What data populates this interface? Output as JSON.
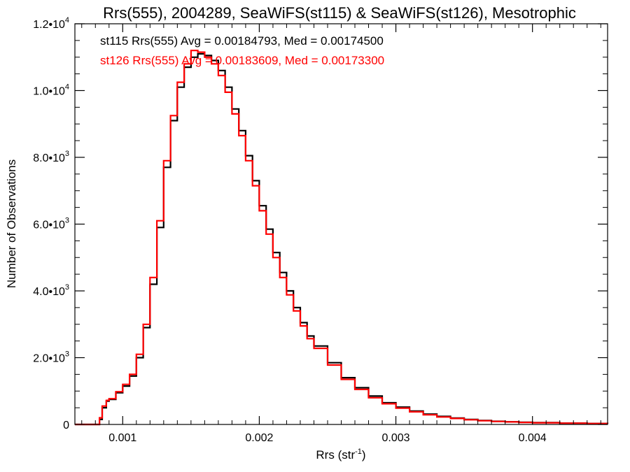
{
  "chart_data": {
    "type": "line",
    "title": "Rrs(555), 2004289, SeaWiFS(st115) & SeaWiFS(st126), Mesotrophic",
    "xlabel": "Rrs (str",
    "xlabel_sup": "-1",
    "xlabel_close": ")",
    "ylabel": "Number of Observations",
    "xlim": [
      0.00065,
      0.00455
    ],
    "ylim": [
      0,
      12000
    ],
    "x_ticks": [
      0.001,
      0.002,
      0.003,
      0.004
    ],
    "x_tick_labels": [
      "0.001",
      "0.002",
      "0.003",
      "0.004"
    ],
    "y_ticks": [
      0,
      2000,
      4000,
      6000,
      8000,
      10000,
      12000
    ],
    "y_tick_labels": [
      {
        "base": "0",
        "exp": ""
      },
      {
        "base": "2.0•10",
        "exp": "3"
      },
      {
        "base": "4.0•10",
        "exp": "3"
      },
      {
        "base": "6.0•10",
        "exp": "3"
      },
      {
        "base": "8.0•10",
        "exp": "3"
      },
      {
        "base": "1.0•10",
        "exp": "4"
      },
      {
        "base": "1.2•10",
        "exp": "4"
      }
    ],
    "annotations": [
      {
        "text": "st115 Rrs(555) Avg = 0.00184793, Med = 0.00174500",
        "color": "#000000"
      },
      {
        "text": "st126 Rrs(555) Avg = 0.00183609, Med = 0.00173300",
        "color": "#ff0000"
      }
    ],
    "series": [
      {
        "color": "#000000",
        "x": [
          0.0008,
          0.00083,
          0.00085,
          0.00088,
          0.0009,
          0.00095,
          0.001,
          0.00105,
          0.0011,
          0.00115,
          0.0012,
          0.00125,
          0.0013,
          0.00135,
          0.0014,
          0.00145,
          0.0015,
          0.00155,
          0.0016,
          0.00165,
          0.0017,
          0.00175,
          0.0018,
          0.00185,
          0.0019,
          0.00195,
          0.002,
          0.00205,
          0.0021,
          0.00215,
          0.0022,
          0.00225,
          0.0023,
          0.00235,
          0.0024,
          0.0025,
          0.0026,
          0.0027,
          0.0028,
          0.0029,
          0.003,
          0.0031,
          0.0032,
          0.0033,
          0.0034,
          0.0035,
          0.0036,
          0.0037,
          0.0038,
          0.0039,
          0.004,
          0.0042,
          0.0044,
          0.00455
        ],
        "values": [
          0,
          150,
          500,
          700,
          750,
          950,
          1150,
          1450,
          2000,
          2900,
          4200,
          5900,
          7700,
          9100,
          10100,
          10700,
          11000,
          11100,
          11050,
          10900,
          10600,
          10100,
          9450,
          8800,
          8050,
          7300,
          6550,
          5850,
          5150,
          4550,
          4000,
          3500,
          3050,
          2650,
          2350,
          1850,
          1400,
          1100,
          850,
          650,
          520,
          400,
          310,
          240,
          190,
          150,
          120,
          95,
          80,
          65,
          55,
          40,
          30,
          25
        ]
      },
      {
        "color": "#ff0000",
        "x": [
          0.0008,
          0.00083,
          0.00085,
          0.00088,
          0.0009,
          0.00095,
          0.001,
          0.00105,
          0.0011,
          0.00115,
          0.0012,
          0.00125,
          0.0013,
          0.00135,
          0.0014,
          0.00145,
          0.0015,
          0.00155,
          0.0016,
          0.00165,
          0.0017,
          0.00175,
          0.0018,
          0.00185,
          0.0019,
          0.00195,
          0.002,
          0.00205,
          0.0021,
          0.00215,
          0.0022,
          0.00225,
          0.0023,
          0.00235,
          0.0024,
          0.0025,
          0.0026,
          0.0027,
          0.0028,
          0.0029,
          0.003,
          0.0031,
          0.0032,
          0.0033,
          0.0034,
          0.0035,
          0.0036,
          0.0037,
          0.0038,
          0.0039,
          0.004,
          0.0042,
          0.0044,
          0.00455
        ],
        "values": [
          0,
          200,
          550,
          720,
          770,
          980,
          1200,
          1500,
          2100,
          3000,
          4400,
          6100,
          7900,
          9250,
          10250,
          10800,
          11200,
          11150,
          11000,
          10800,
          10450,
          9950,
          9300,
          8650,
          7900,
          7150,
          6400,
          5700,
          5000,
          4400,
          3880,
          3400,
          2950,
          2570,
          2280,
          1780,
          1350,
          1050,
          800,
          620,
          490,
          380,
          290,
          225,
          180,
          140,
          110,
          90,
          75,
          60,
          50,
          38,
          28,
          22
        ]
      }
    ]
  }
}
